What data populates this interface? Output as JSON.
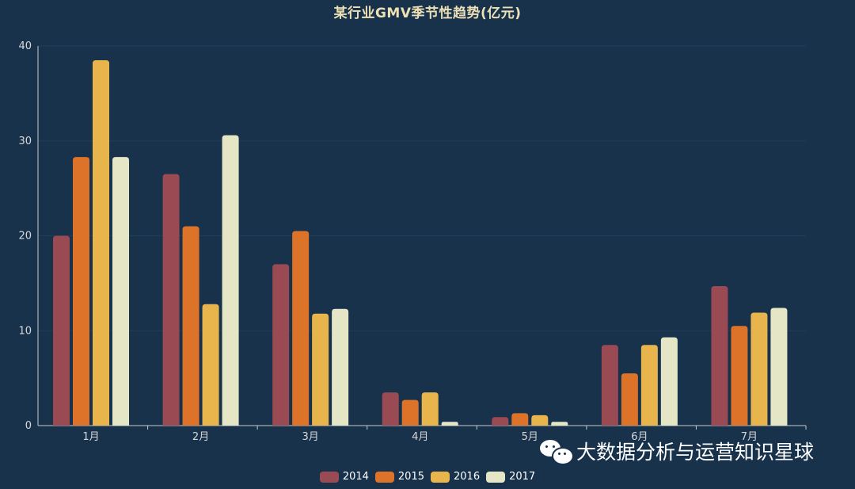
{
  "chart_data": {
    "type": "bar",
    "title": "某行业GMV季节性趋势(亿元)",
    "categories": [
      "1月",
      "2月",
      "3月",
      "4月",
      "5月",
      "6月",
      "7月"
    ],
    "series": [
      {
        "name": "2014",
        "color": "#994a52",
        "values": [
          20,
          26.5,
          17,
          3.5,
          0.9,
          8.5,
          14.7
        ]
      },
      {
        "name": "2015",
        "color": "#dc7329",
        "values": [
          28.3,
          21,
          20.5,
          2.7,
          1.3,
          5.5,
          10.5
        ]
      },
      {
        "name": "2016",
        "color": "#e8b54d",
        "values": [
          38.5,
          12.8,
          11.8,
          3.5,
          1.1,
          8.5,
          11.9
        ]
      },
      {
        "name": "2017",
        "color": "#e5e6c6",
        "values": [
          28.3,
          30.6,
          12.3,
          0.4,
          0.4,
          9.3,
          12.4
        ]
      }
    ],
    "ylim": [
      0,
      40
    ],
    "yticks": [
      0,
      10,
      20,
      30,
      40
    ],
    "grid": true,
    "legend_position": "bottom-center"
  },
  "watermark": {
    "text": "大数据分析与运营知识星球",
    "icon": "wechat-icon"
  },
  "colors": {
    "background": "#18324c",
    "title": "#ece0b4",
    "axis_text": "#d8d8d8",
    "grid": "#223d57"
  }
}
